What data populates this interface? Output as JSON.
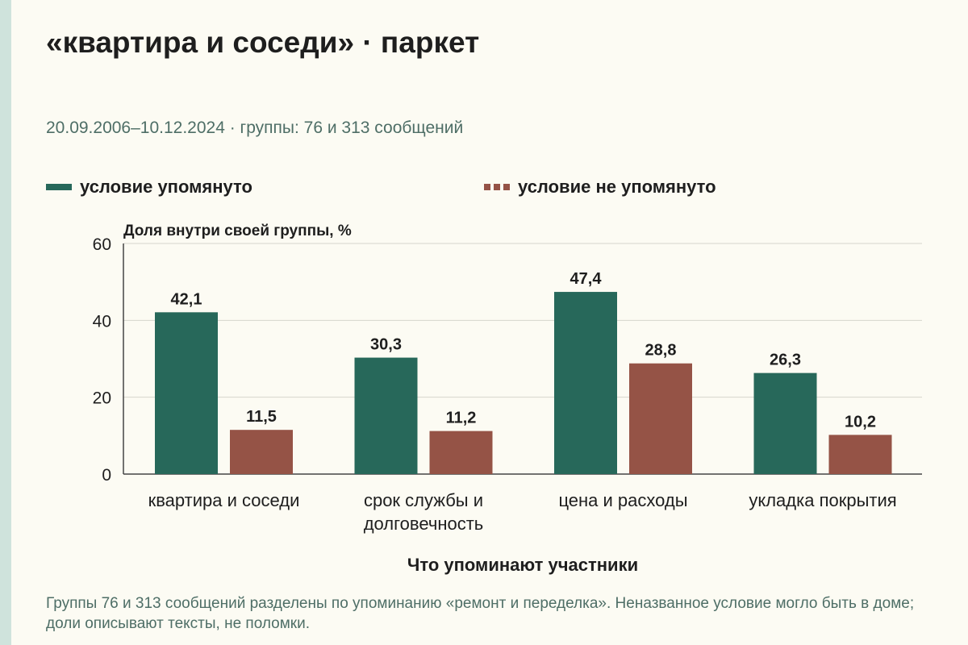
{
  "header": {
    "title": "«квартира и соседи» · паркет",
    "subtitle": "20.09.2006–10.12.2024 · группы: 76 и 313 сообщений"
  },
  "legend": [
    {
      "label": "условие упомянуто",
      "color": "#27685a",
      "style": "solid"
    },
    {
      "label": "условие не упомянуто",
      "color": "#955346",
      "style": "dashed"
    }
  ],
  "chart_data": {
    "type": "bar",
    "ylabel": "Доля внутри своей группы, %",
    "xlabel": "Что упоминают участники",
    "ylim": [
      0,
      60
    ],
    "yticks": [
      "0",
      "20",
      "40",
      "60"
    ],
    "grid": true,
    "legend_position": "top",
    "categories": [
      [
        "квартира и соседи"
      ],
      [
        "срок службы и",
        "долговечность"
      ],
      [
        "цена и расходы"
      ],
      [
        "укладка покрытия"
      ]
    ],
    "series": [
      {
        "name": "условие упомянуто",
        "color": "#27685a",
        "values": [
          42.1,
          30.3,
          47.4,
          26.3
        ],
        "labels": [
          "42,1",
          "30,3",
          "47,4",
          "26,3"
        ]
      },
      {
        "name": "условие не упомянуто",
        "color": "#955346",
        "values": [
          11.5,
          11.2,
          28.8,
          10.2
        ],
        "labels": [
          "11,5",
          "11,2",
          "28,8",
          "10,2"
        ]
      }
    ]
  },
  "footnote": "Группы 76 и 313 сообщений разделены по упоминанию «ремонт и переделка». Неназванное условие могло быть в доме; доли описывают тексты, не поломки."
}
